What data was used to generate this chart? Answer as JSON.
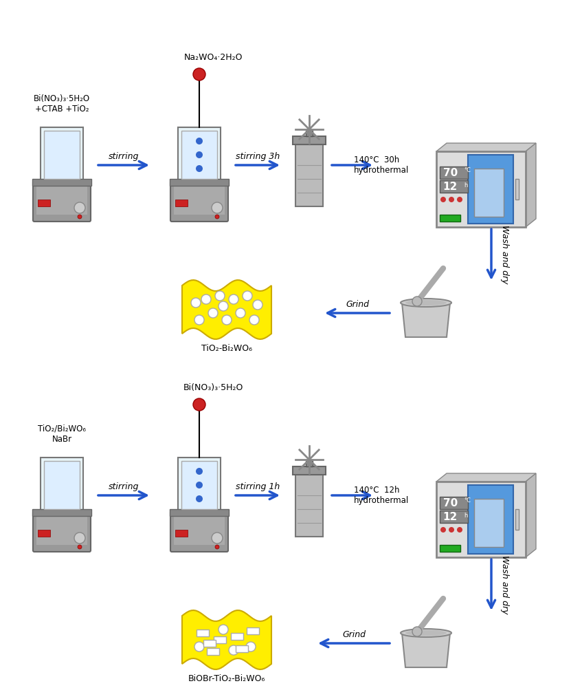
{
  "bg_color": "#ffffff",
  "arrow_color": "#2255cc",
  "text_color": "#000000",
  "red_color": "#cc0000",
  "yellow_color": "#ffee00",
  "blue_color": "#4499dd",
  "gray_color": "#aaaaaa",
  "green_color": "#33aa33",
  "row1": {
    "label1": "Bi(NO₃)₃·5H₂O\n+CTAB +TiO₂",
    "label2": "Na₂WO₄·2H₂O",
    "arrow1": "stirring",
    "arrow2": "stirring 3h",
    "arrow3": "140°C  30h\nhydrothermal",
    "arrow4": "Wash and dry",
    "arrow5": "Grind",
    "product": "TiO₂-Bi₂WO₆",
    "oven_top": "70",
    "oven_bot": "12"
  },
  "row2": {
    "label1": "TiO₂/Bi₂WO₆\nNaBr",
    "label2": "Bi(NO₃)₃·5H₂O",
    "arrow1": "stirring",
    "arrow2": "stirring 1h",
    "arrow3": "140°C  12h\nhydrothermal",
    "arrow4": "Wash and dry",
    "arrow5": "Grind",
    "product": "BiOBr-TiO₂-Bi₂WO₆",
    "oven_top": "70",
    "oven_bot": "12"
  }
}
